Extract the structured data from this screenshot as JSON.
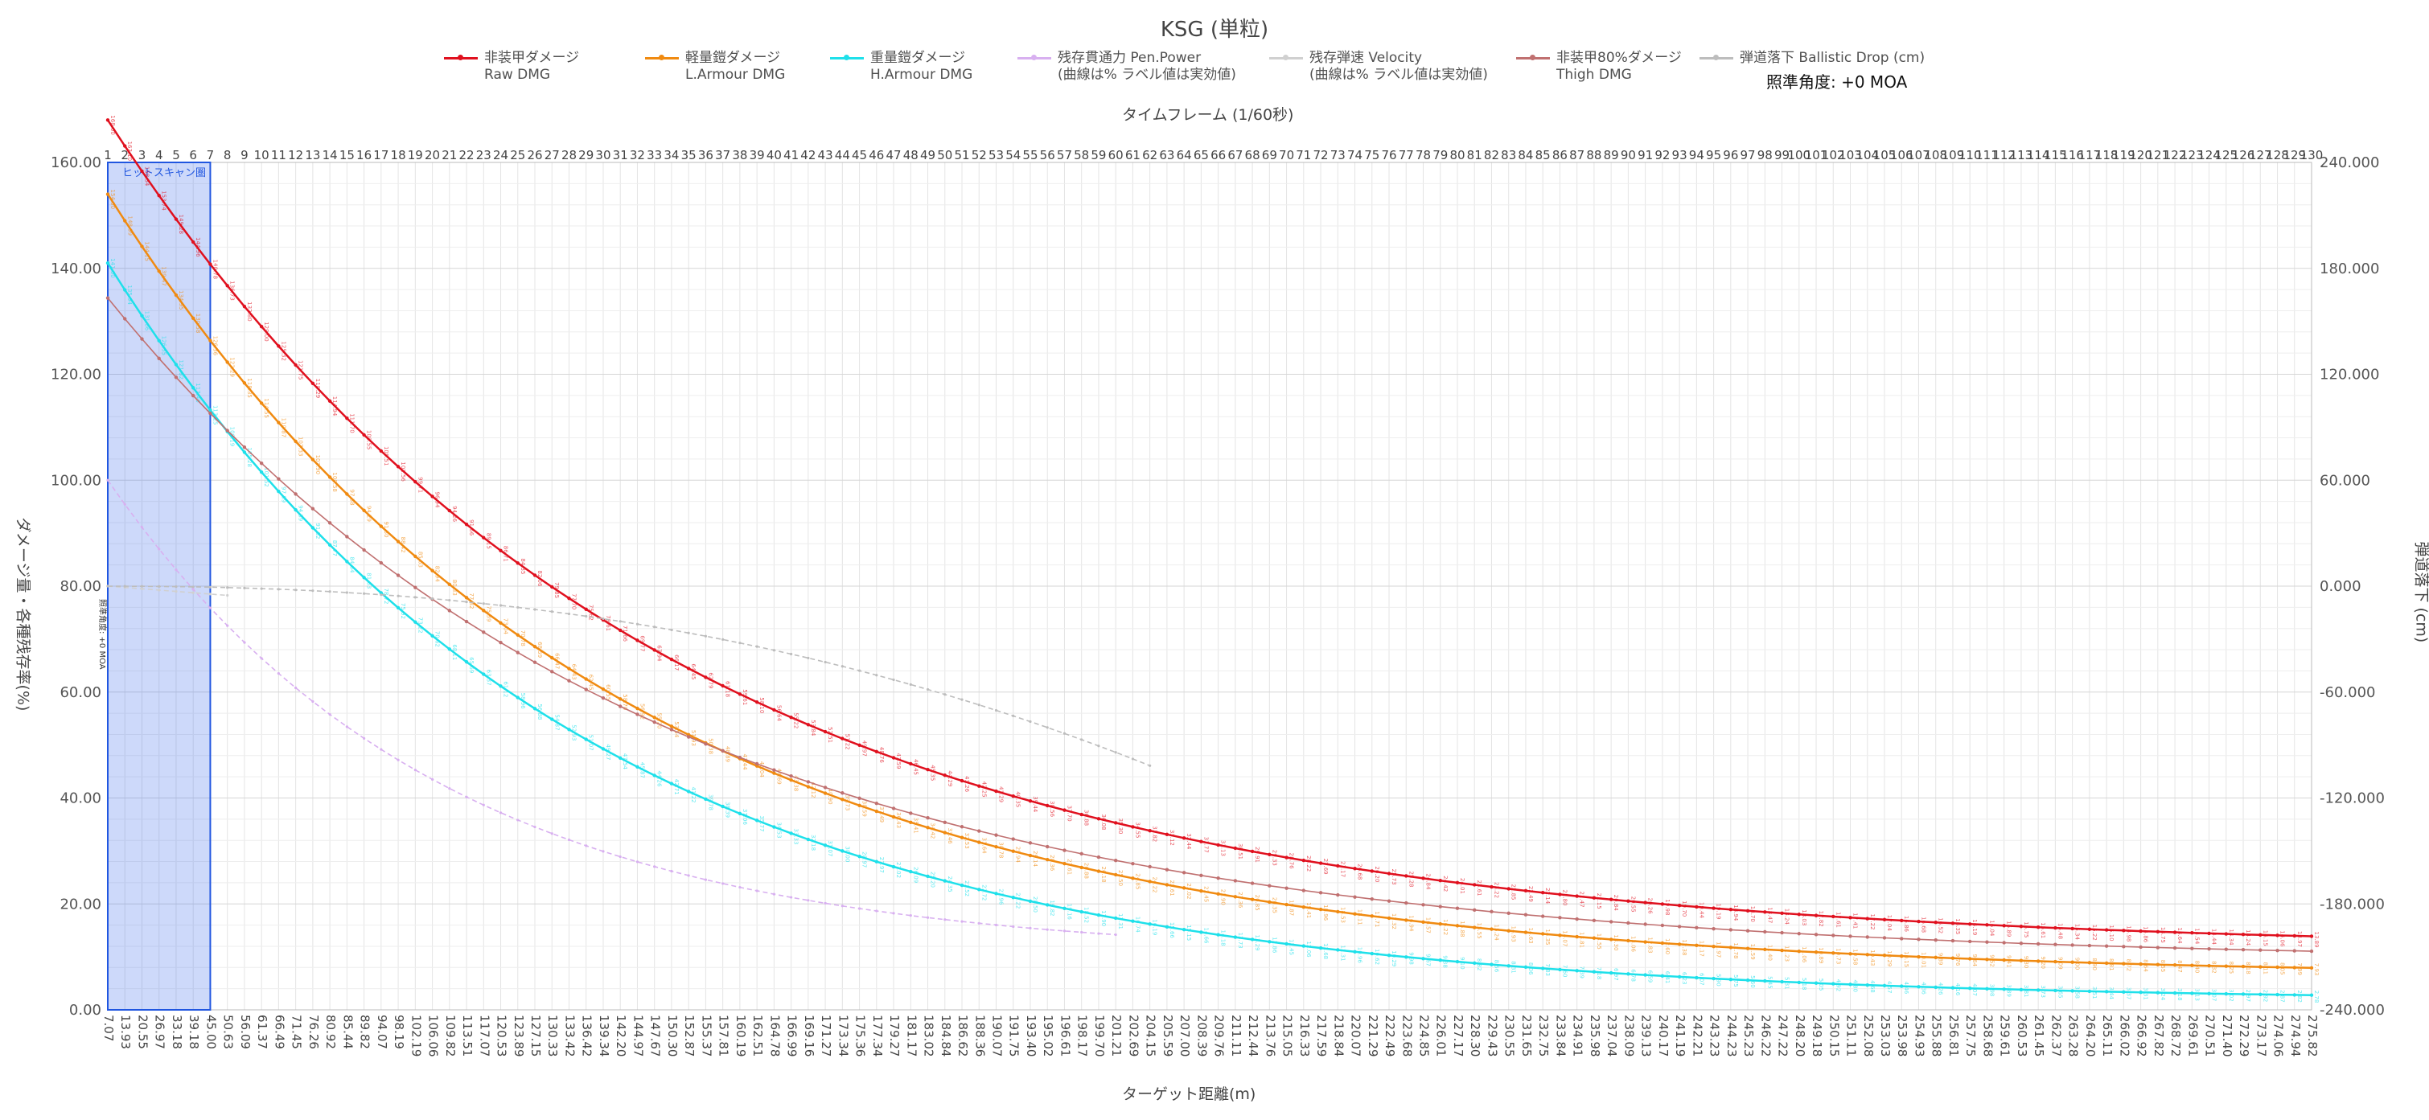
{
  "chart_data": {
    "type": "line",
    "title": "KSG (単粒)",
    "aim_label": "照準角度: +0 MOA",
    "x_top_label": "タイムフレーム (1/60秒)",
    "x_bottom_label": "ターゲット距離(m)",
    "y_left_label": "ダメージ量・各種残存率(%)",
    "y_right_label": "弾道落下 (cm)",
    "hitscan_label": "ヒットスキャン圏",
    "side_note": "照準角度: +0 MOA",
    "ylim_left": [
      0,
      160
    ],
    "ylim_right": [
      -240,
      240
    ],
    "y_left_ticks": [
      "0.00",
      "20.00",
      "40.00",
      "60.00",
      "80.00",
      "100.00",
      "120.00",
      "140.00",
      "160.00"
    ],
    "y_right_ticks": [
      "-240.000",
      "-180.000",
      "-120.000",
      "-60.000",
      "0.000",
      "60.000",
      "120.000",
      "180.000",
      "240.000"
    ],
    "frames": [
      1,
      2,
      3,
      4,
      5,
      6,
      7,
      8,
      9,
      10,
      11,
      12,
      13,
      14,
      15,
      16,
      17,
      18,
      19,
      20,
      21,
      22,
      23,
      24,
      25,
      26,
      27,
      28,
      29,
      30,
      31,
      32,
      33,
      34,
      35,
      36,
      37,
      38,
      39,
      40,
      41,
      42,
      43,
      44,
      45,
      46,
      47,
      48,
      49,
      50,
      51,
      52,
      53,
      54,
      55,
      56,
      57,
      58,
      59,
      60,
      61,
      62,
      63,
      64,
      65,
      66,
      67,
      68,
      69,
      70,
      71,
      72,
      73,
      74,
      75,
      76,
      77,
      78,
      79,
      80,
      81,
      82,
      83,
      84,
      85,
      86,
      87,
      88,
      89,
      90,
      91,
      92,
      93,
      94,
      95,
      96,
      97,
      98,
      99,
      100,
      101,
      102,
      103,
      104,
      105,
      106,
      107,
      108,
      109,
      110,
      111,
      112,
      113,
      114,
      115,
      116,
      117,
      118,
      119,
      120,
      121,
      122,
      123,
      124,
      125,
      126,
      127,
      128,
      129,
      130
    ],
    "distances": [
      "7.07",
      "13.93",
      "20.55",
      "26.97",
      "33.18",
      "39.18",
      "45.00",
      "50.63",
      "56.09",
      "61.37",
      "66.49",
      "71.45",
      "76.26",
      "80.92",
      "85.44",
      "89.82",
      "94.07",
      "98.19",
      "102.19",
      "106.06",
      "109.82",
      "113.51",
      "117.07",
      "120.53",
      "123.89",
      "127.15",
      "130.33",
      "133.42",
      "136.42",
      "139.34",
      "142.20",
      "144.97",
      "147.67",
      "150.30",
      "152.87",
      "155.37",
      "157.81",
      "160.19",
      "162.51",
      "164.78",
      "166.99",
      "169.16",
      "171.27",
      "173.34",
      "175.36",
      "177.34",
      "179.27",
      "181.17",
      "183.02",
      "184.84",
      "186.62",
      "188.36",
      "190.07",
      "191.75",
      "193.40",
      "195.02",
      "196.61",
      "198.17",
      "199.70",
      "201.21",
      "202.69",
      "204.15",
      "205.59",
      "207.00",
      "208.39",
      "209.76",
      "211.11",
      "212.44",
      "213.76",
      "215.05",
      "216.33",
      "217.59",
      "218.84",
      "220.07",
      "221.29",
      "222.49",
      "223.68",
      "224.85",
      "226.01",
      "227.17",
      "228.30",
      "229.43",
      "230.55",
      "231.65",
      "232.75",
      "233.84",
      "234.91",
      "235.98",
      "237.04",
      "238.09",
      "239.13",
      "240.17",
      "241.19",
      "242.21",
      "243.23",
      "244.23",
      "245.23",
      "246.22",
      "247.22",
      "248.20",
      "249.18",
      "250.15",
      "251.11",
      "252.08",
      "253.03",
      "253.98",
      "254.93",
      "255.88",
      "256.81",
      "257.75",
      "258.68",
      "259.61",
      "260.53",
      "261.45",
      "262.37",
      "263.28",
      "264.20",
      "265.11",
      "266.02",
      "266.92",
      "267.82",
      "268.72",
      "269.61",
      "270.51",
      "271.40",
      "272.29",
      "273.17",
      "274.06",
      "274.94",
      "275.82"
    ],
    "series": [
      {
        "name": "非装甲ダメージ\nRaw DMG",
        "color": "#e0101e",
        "start": 168,
        "end": 11.3,
        "k": 0.0318,
        "labels": true
      },
      {
        "name": "軽量鎧ダメージ\nL.Armour DMG",
        "color": "#f08a10",
        "start": 154,
        "end": 6.2,
        "k": 0.0345,
        "labels": true
      },
      {
        "name": "重量鎧ダメージ\nH.Armour DMG",
        "color": "#1ee0ea",
        "start": 141,
        "end": 1.6,
        "k": 0.037,
        "labels": true
      },
      {
        "name": "残存貫通力 Pen.Power\n(曲線は% ラベル値は実効値)",
        "color": "#d8b0f0",
        "start": 100,
        "end": 10,
        "k": 0.052,
        "labels": false,
        "stop": 60
      },
      {
        "name": "残存弾速 Velocity\n(曲線は% ラベル値は実効値)",
        "color": "#d0d0d0",
        "start": 80,
        "end": 80,
        "k": 0,
        "labels": false,
        "stop": 8
      },
      {
        "name": "非装甲80%ダメージ\nThigh DMG",
        "color": "#c07070",
        "start": 134.4,
        "end": 9.0,
        "k": 0.0318,
        "labels": false
      },
      {
        "name": "弾道落下 Ballistic Drop (cm)",
        "color": "#bdbdbd",
        "start": 0,
        "end": 0,
        "k": 0,
        "labels": false,
        "drop": true,
        "stop": 62
      }
    ]
  }
}
